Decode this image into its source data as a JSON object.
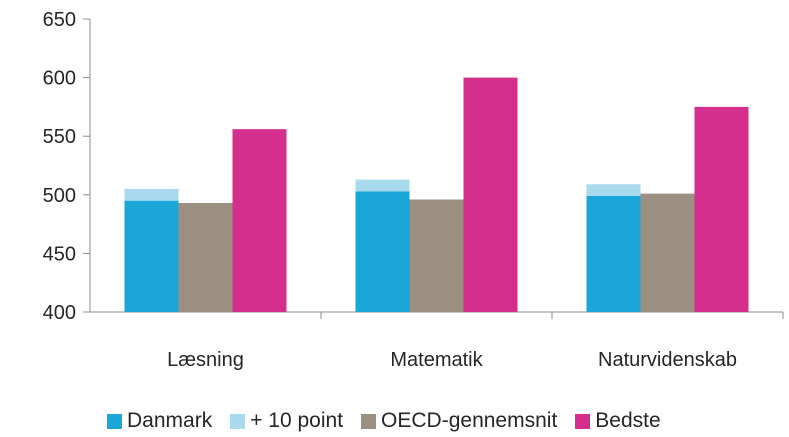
{
  "chart_data": {
    "type": "bar",
    "stacked_first_series": true,
    "categories": [
      "Læsning",
      "Matematik",
      "Naturvidenskab"
    ],
    "series": [
      {
        "name": "Danmark",
        "values": [
          495,
          503,
          499
        ],
        "color": "#1aa6d6"
      },
      {
        "name": "+ 10 point",
        "values": [
          10,
          10,
          10
        ],
        "color": "#a9d9ec",
        "stack_on": "Danmark"
      },
      {
        "name": "OECD-gennemsnit",
        "values": [
          493,
          496,
          501
        ],
        "color": "#9a8f80"
      },
      {
        "name": "Bedste",
        "values": [
          556,
          600,
          575
        ],
        "color": "#d42f8c"
      }
    ],
    "yticks": [
      400,
      450,
      500,
      550,
      600,
      650
    ],
    "ylim": [
      400,
      650
    ],
    "title": "",
    "xlabel": "",
    "ylabel": "",
    "grid": false,
    "legend_position": "bottom"
  }
}
